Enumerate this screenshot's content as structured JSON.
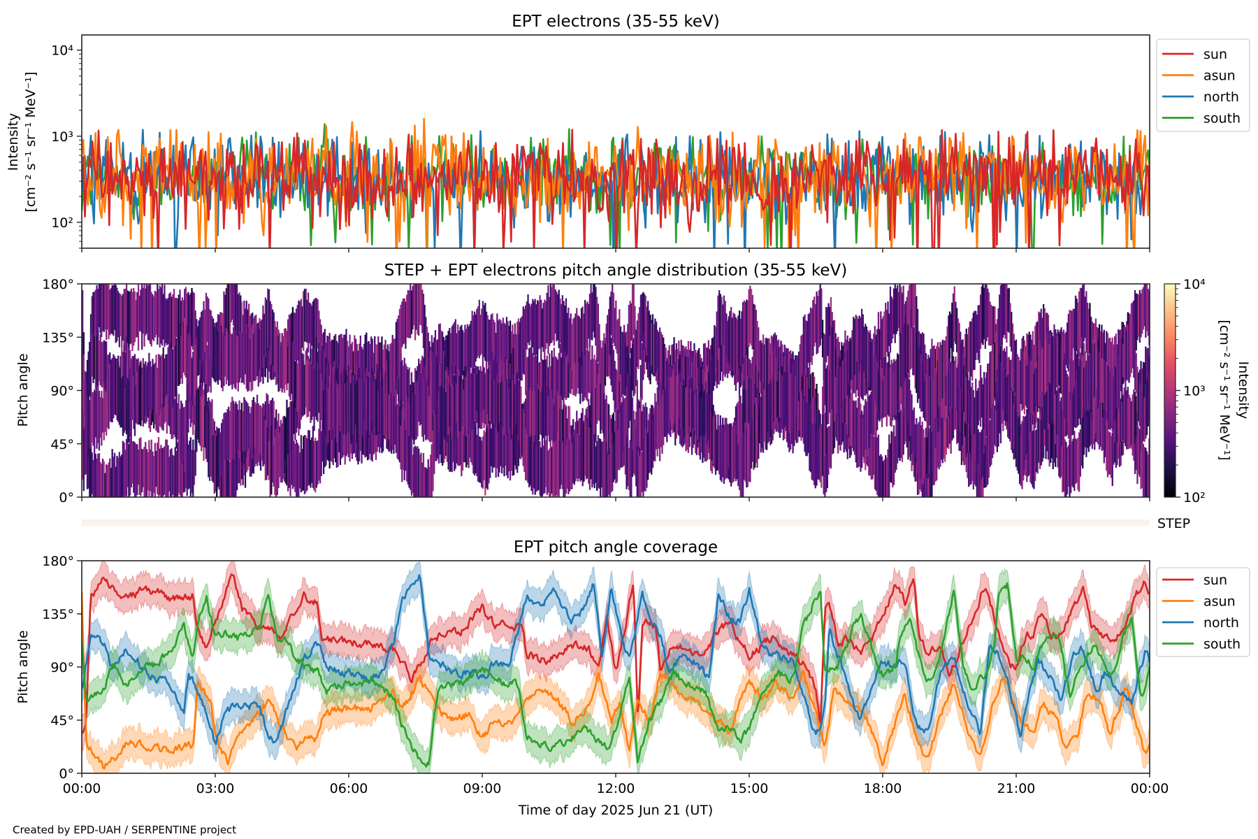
{
  "figure": {
    "footer": "Created by EPD-UAH / SERPENTINE project",
    "xlabel": "Time of day 2025 Jun 21 (UT)",
    "xticks": [
      "00:00",
      "03:00",
      "06:00",
      "09:00",
      "12:00",
      "15:00",
      "18:00",
      "21:00",
      "00:00"
    ],
    "xrange_hours": [
      0,
      24
    ]
  },
  "colors": {
    "sun": "#d62728",
    "asun": "#ff7f0e",
    "north": "#1f77b4",
    "south": "#2ca02c",
    "step_bar": "#fdf1ec",
    "axis": "#222222"
  },
  "chart_data": [
    {
      "id": "intensity",
      "type": "line",
      "title": "EPT electrons (35-55 keV)",
      "ylabel_line1": "Intensity",
      "ylabel_line2": "[cm⁻² s⁻¹ sr⁻¹ MeV⁻¹]",
      "yscale": "log",
      "ylim": [
        50,
        15000
      ],
      "yticks": [
        {
          "value": 100,
          "label": "10²"
        },
        {
          "value": 1000,
          "label": "10³"
        },
        {
          "value": 10000,
          "label": "10⁴"
        }
      ],
      "legend": {
        "placement": "outside-top-right",
        "entries": [
          "sun",
          "asun",
          "north",
          "south"
        ]
      },
      "noise_model": {
        "description": "dense 1-min noisy time series",
        "samples": 700,
        "series": [
          {
            "name": "south",
            "median": 330,
            "typical_min": 120,
            "typical_max": 850
          },
          {
            "name": "north",
            "median": 320,
            "typical_min": 110,
            "typical_max": 850
          },
          {
            "name": "asun",
            "median": 340,
            "typical_min": 100,
            "typical_max": 900
          },
          {
            "name": "sun",
            "median": 330,
            "typical_min": 100,
            "typical_max": 800
          }
        ]
      }
    },
    {
      "id": "pad",
      "type": "heatmap",
      "title": "STEP + EPT electrons pitch angle distribution (35-55 keV)",
      "ylabel": "Pitch angle",
      "ylim": [
        0,
        180
      ],
      "yticks": [
        "0°",
        "45°",
        "90°",
        "135°",
        "180°"
      ],
      "colorbar": {
        "label_line1": "Intensity",
        "label_line2": "[cm⁻² s⁻¹ sr⁻¹ MeV⁻¹]",
        "scale": "log",
        "range": [
          100,
          10000
        ],
        "ticks": [
          "10²",
          "10³",
          "10⁴"
        ],
        "colormap": "magma"
      },
      "typical_intensity_range": [
        150,
        900
      ],
      "note": "filled where EPT telescope pitch-angle coverage exists"
    },
    {
      "id": "step_bar",
      "type": "bar",
      "label": "STEP"
    },
    {
      "id": "coverage",
      "type": "line",
      "title": "EPT pitch angle coverage",
      "ylabel": "Pitch angle",
      "ylim": [
        0,
        180
      ],
      "yticks": [
        "0°",
        "45°",
        "90°",
        "135°",
        "180°"
      ],
      "legend": {
        "placement": "outside-top-right",
        "entries": [
          "sun",
          "asun",
          "north",
          "south"
        ]
      },
      "band_halfwidth_deg": 13,
      "series": [
        {
          "name": "sun",
          "t": [
            0,
            0.1,
            0.2,
            0.5,
            1.0,
            1.5,
            2.0,
            2.5,
            2.6,
            2.8,
            3.0,
            3.4,
            3.6,
            4.0,
            4.5,
            5.0,
            5.3,
            5.4,
            6.0,
            6.5,
            7.0,
            7.2,
            7.4,
            7.6,
            7.9,
            8.5,
            9.0,
            9.3,
            9.9,
            10.0,
            10.5,
            11.0,
            11.4,
            11.6,
            11.8,
            12.0,
            12.2,
            12.4,
            12.5,
            12.6,
            12.9,
            13.0,
            13.3,
            13.6,
            14.0,
            14.3,
            14.6,
            14.8,
            15.0,
            15.5,
            16.0,
            16.3,
            16.5,
            16.6,
            16.7,
            16.8,
            17.0,
            17.2,
            17.5,
            17.8,
            18.0,
            18.3,
            18.5,
            18.7,
            18.8,
            19.0,
            19.3,
            19.5,
            19.8,
            20.1,
            20.3,
            20.6,
            20.8,
            21.0,
            21.2,
            21.4,
            21.6,
            21.8,
            22.0,
            22.3,
            22.5,
            22.7,
            23.0,
            23.2,
            23.5,
            23.7,
            23.9,
            24.0
          ],
          "v": [
            34,
            40,
            148,
            165,
            150,
            155,
            148,
            150,
            120,
            105,
            128,
            170,
            140,
            125,
            115,
            150,
            145,
            115,
            112,
            110,
            105,
            95,
            80,
            90,
            115,
            120,
            140,
            125,
            125,
            100,
            95,
            110,
            105,
            90,
            130,
            85,
            120,
            165,
            45,
            130,
            125,
            90,
            110,
            105,
            100,
            120,
            130,
            110,
            100,
            115,
            100,
            90,
            70,
            40,
            140,
            145,
            110,
            115,
            100,
            115,
            135,
            160,
            145,
            165,
            120,
            100,
            110,
            80,
            110,
            140,
            160,
            120,
            95,
            90,
            115,
            120,
            135,
            115,
            120,
            140,
            160,
            125,
            115,
            110,
            130,
            150,
            165,
            155
          ]
        },
        {
          "name": "asun",
          "t": [
            0,
            0.1,
            0.5,
            0.8,
            1.0,
            1.5,
            2.0,
            2.5,
            2.6,
            2.9,
            3.0,
            3.3,
            3.5,
            4.0,
            4.2,
            4.5,
            4.8,
            5.0,
            5.3,
            5.4,
            6.0,
            6.5,
            7.0,
            7.2,
            7.4,
            7.6,
            8.0,
            8.3,
            8.7,
            9.0,
            9.3,
            9.8,
            10.0,
            10.3,
            10.7,
            11.0,
            11.4,
            11.6,
            11.9,
            12.1,
            12.3,
            12.5,
            12.8,
            13.0,
            13.3,
            13.6,
            14.0,
            14.3,
            14.6,
            14.8,
            15.0,
            15.3,
            15.6,
            16.0,
            16.2,
            16.5,
            16.7,
            16.9,
            17.2,
            17.5,
            17.8,
            18.0,
            18.3,
            18.5,
            18.8,
            19.0,
            19.3,
            19.6,
            19.9,
            20.2,
            20.5,
            20.7,
            21.0,
            21.2,
            21.4,
            21.6,
            21.9,
            22.1,
            22.4,
            22.6,
            22.9,
            23.1,
            23.3,
            23.5,
            23.7,
            23.9,
            24.0
          ],
          "v": [
            155,
            25,
            5,
            15,
            25,
            22,
            20,
            25,
            75,
            60,
            30,
            10,
            35,
            50,
            60,
            40,
            20,
            28,
            30,
            50,
            55,
            55,
            70,
            55,
            65,
            80,
            55,
            45,
            50,
            30,
            45,
            45,
            65,
            70,
            60,
            45,
            55,
            85,
            45,
            60,
            20,
            60,
            45,
            85,
            75,
            65,
            55,
            45,
            35,
            60,
            80,
            60,
            75,
            65,
            85,
            50,
            20,
            70,
            60,
            55,
            30,
            10,
            45,
            65,
            25,
            10,
            50,
            75,
            40,
            10,
            60,
            80,
            55,
            40,
            35,
            60,
            45,
            25,
            35,
            70,
            60,
            35,
            55,
            75,
            40,
            15,
            25
          ]
        },
        {
          "name": "north",
          "t": [
            0,
            0.2,
            0.5,
            0.7,
            1.0,
            1.5,
            2.0,
            2.3,
            2.4,
            2.6,
            2.8,
            3.0,
            3.2,
            3.5,
            4.0,
            4.2,
            4.4,
            4.6,
            5.0,
            5.3,
            5.5,
            6.0,
            6.5,
            6.8,
            7.0,
            7.2,
            7.4,
            7.6,
            7.8,
            8.0,
            8.3,
            8.7,
            9.0,
            9.3,
            9.6,
            10.0,
            10.3,
            10.6,
            11.0,
            11.3,
            11.5,
            11.7,
            11.9,
            12.1,
            12.3,
            12.6,
            13.0,
            13.2,
            13.5,
            13.8,
            14.1,
            14.3,
            14.6,
            14.8,
            15.0,
            15.3,
            15.6,
            16.0,
            16.3,
            16.5,
            16.7,
            16.8,
            17.0,
            17.3,
            17.5,
            17.8,
            18.0,
            18.3,
            18.5,
            18.7,
            19.0,
            19.3,
            19.6,
            19.9,
            20.2,
            20.4,
            20.6,
            20.8,
            21.1,
            21.3,
            21.5,
            21.8,
            22.0,
            22.3,
            22.5,
            22.8,
            23.0,
            23.3,
            23.6,
            23.9,
            24.0
          ],
          "v": [
            70,
            120,
            110,
            85,
            105,
            85,
            75,
            55,
            85,
            70,
            50,
            25,
            50,
            60,
            55,
            30,
            25,
            55,
            95,
            110,
            90,
            85,
            80,
            85,
            110,
            145,
            160,
            170,
            100,
            95,
            85,
            85,
            80,
            95,
            90,
            150,
            140,
            155,
            130,
            140,
            160,
            100,
            160,
            120,
            95,
            150,
            115,
            85,
            100,
            95,
            80,
            150,
            130,
            130,
            155,
            105,
            100,
            95,
            55,
            30,
            55,
            120,
            100,
            60,
            45,
            80,
            95,
            90,
            95,
            45,
            35,
            85,
            100,
            60,
            35,
            110,
            100,
            80,
            30,
            70,
            95,
            80,
            60,
            100,
            105,
            70,
            85,
            70,
            60,
            105,
            95
          ]
        },
        {
          "name": "south",
          "t": [
            0,
            0.1,
            0.5,
            0.7,
            1.0,
            1.5,
            2.0,
            2.3,
            2.5,
            2.6,
            2.8,
            3.0,
            3.2,
            3.5,
            4.0,
            4.2,
            4.4,
            4.6,
            5.0,
            5.3,
            5.5,
            6.0,
            6.5,
            7.0,
            7.2,
            7.4,
            7.6,
            7.8,
            8.0,
            8.3,
            8.7,
            9.0,
            9.3,
            9.8,
            10.0,
            10.3,
            10.6,
            11.0,
            11.3,
            11.5,
            11.8,
            12.0,
            12.3,
            12.5,
            12.7,
            13.0,
            13.3,
            13.6,
            14.0,
            14.3,
            14.6,
            14.8,
            15.0,
            15.3,
            15.6,
            16.0,
            16.2,
            16.4,
            16.5,
            16.6,
            16.7,
            17.0,
            17.3,
            17.5,
            17.7,
            17.9,
            18.0,
            18.3,
            18.4,
            18.6,
            18.8,
            19.0,
            19.2,
            19.4,
            19.6,
            19.8,
            20.0,
            20.3,
            20.5,
            20.6,
            20.8,
            21.0,
            21.2,
            21.4,
            21.6,
            21.8,
            22.0,
            22.2,
            22.4,
            22.6,
            22.8,
            23.0,
            23.2,
            23.4,
            23.6,
            23.8,
            24.0
          ],
          "v": [
            110,
            60,
            75,
            90,
            75,
            90,
            100,
            125,
            95,
            125,
            150,
            115,
            120,
            115,
            120,
            155,
            110,
            110,
            90,
            85,
            70,
            75,
            80,
            65,
            40,
            25,
            10,
            10,
            70,
            75,
            80,
            90,
            80,
            75,
            30,
            25,
            20,
            30,
            40,
            30,
            20,
            35,
            85,
            10,
            40,
            60,
            85,
            75,
            70,
            35,
            40,
            30,
            35,
            70,
            85,
            80,
            120,
            140,
            150,
            155,
            85,
            90,
            120,
            135,
            110,
            90,
            85,
            90,
            120,
            130,
            100,
            80,
            85,
            120,
            155,
            90,
            70,
            85,
            110,
            150,
            160,
            95,
            100,
            90,
            110,
            120,
            110,
            65,
            85,
            100,
            110,
            90,
            85,
            115,
            130,
            60,
            90
          ]
        }
      ]
    }
  ]
}
